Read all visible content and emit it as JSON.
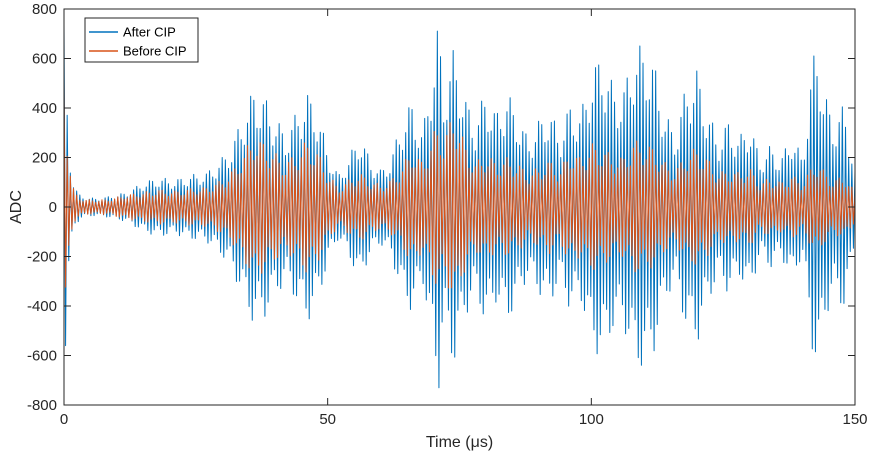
{
  "chart_data": {
    "type": "line",
    "xlabel": "Time (μs)",
    "ylabel": "ADC",
    "xlim": [
      0,
      150
    ],
    "ylim": [
      -800,
      800
    ],
    "x_ticks": [
      0,
      50,
      100,
      150
    ],
    "y_ticks": [
      -800,
      -600,
      -400,
      -200,
      0,
      200,
      400,
      600,
      800
    ],
    "grid": false,
    "legend_position": "top-left",
    "series": [
      {
        "name": "After CIP",
        "color": "#0072BD",
        "oscillation_period_us": 0.6,
        "envelope": {
          "x": [
            0,
            0.5,
            1,
            1.5,
            2,
            3,
            4,
            6,
            8,
            10,
            12,
            15,
            18,
            21,
            24,
            27,
            30,
            32,
            34,
            36,
            38,
            40,
            42,
            44,
            46,
            48,
            50,
            52,
            54,
            56,
            58,
            60,
            62,
            64,
            66,
            68,
            70,
            71,
            72,
            74,
            76,
            78,
            80,
            82,
            84,
            86,
            88,
            90,
            92,
            94,
            96,
            98,
            100,
            102,
            104,
            106,
            108,
            110,
            112,
            114,
            116,
            118,
            120,
            122,
            124,
            126,
            128,
            130,
            132,
            134,
            136,
            138,
            140,
            142,
            143,
            144,
            146,
            148,
            150
          ],
          "y": [
            740,
            480,
            250,
            150,
            80,
            50,
            40,
            35,
            40,
            50,
            60,
            100,
            120,
            110,
            130,
            140,
            200,
            260,
            380,
            480,
            450,
            370,
            300,
            380,
            470,
            400,
            230,
            130,
            200,
            300,
            200,
            150,
            200,
            350,
            430,
            300,
            600,
            760,
            480,
            650,
            450,
            350,
            480,
            380,
            470,
            380,
            280,
            350,
            400,
            300,
            420,
            380,
            560,
            620,
            500,
            470,
            640,
            660,
            580,
            380,
            300,
            500,
            560,
            400,
            280,
            350,
            280,
            350,
            200,
            250,
            200,
            300,
            200,
            600,
            680,
            480,
            350,
            420,
            150
          ]
        }
      },
      {
        "name": "Before CIP",
        "color": "#D95319",
        "oscillation_period_us": 0.6,
        "envelope": {
          "x": [
            0,
            0.5,
            1,
            1.5,
            2,
            3,
            4,
            6,
            8,
            10,
            12,
            15,
            18,
            21,
            24,
            27,
            30,
            32,
            34,
            36,
            38,
            40,
            42,
            44,
            46,
            48,
            50,
            52,
            54,
            56,
            58,
            60,
            62,
            64,
            66,
            68,
            70,
            71,
            72,
            74,
            76,
            78,
            80,
            82,
            84,
            86,
            88,
            90,
            92,
            94,
            96,
            98,
            100,
            102,
            104,
            106,
            108,
            110,
            112,
            114,
            116,
            118,
            120,
            122,
            124,
            126,
            128,
            130,
            132,
            134,
            136,
            138,
            140,
            142,
            143,
            144,
            146,
            148,
            150
          ],
          "y": [
            650,
            350,
            200,
            100,
            60,
            40,
            30,
            30,
            30,
            40,
            50,
            60,
            70,
            65,
            75,
            80,
            110,
            150,
            220,
            290,
            260,
            220,
            180,
            220,
            270,
            230,
            140,
            80,
            110,
            140,
            110,
            90,
            110,
            160,
            240,
            180,
            300,
            330,
            280,
            390,
            260,
            180,
            220,
            180,
            200,
            180,
            140,
            160,
            190,
            150,
            230,
            200,
            260,
            240,
            210,
            200,
            270,
            260,
            240,
            180,
            150,
            220,
            240,
            200,
            140,
            150,
            140,
            160,
            100,
            120,
            100,
            130,
            100,
            170,
            190,
            150,
            110,
            130,
            60
          ]
        }
      }
    ]
  }
}
